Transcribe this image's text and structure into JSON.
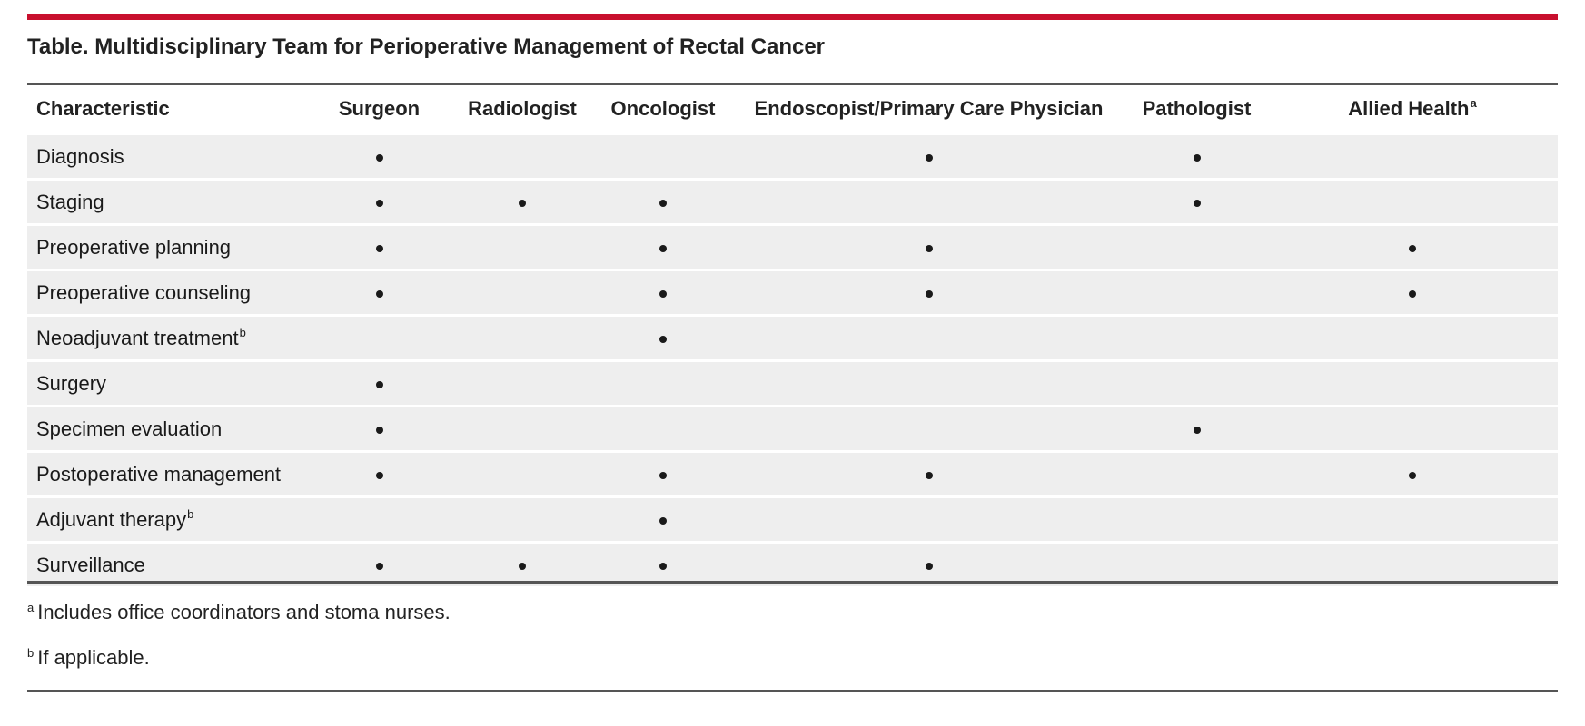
{
  "title": "Table. Multidisciplinary Team for Perioperative Management of Rectal Cancer",
  "columns": [
    {
      "label": "Characteristic",
      "sup": ""
    },
    {
      "label": "Surgeon",
      "sup": ""
    },
    {
      "label": "Radiologist",
      "sup": ""
    },
    {
      "label": "Oncologist",
      "sup": ""
    },
    {
      "label": "Endoscopist/Primary Care Physician",
      "sup": ""
    },
    {
      "label": "Pathologist",
      "sup": ""
    },
    {
      "label": "Allied Health",
      "sup": "a"
    }
  ],
  "rows": [
    {
      "label": "Diagnosis",
      "sup": "",
      "marks": [
        true,
        false,
        false,
        true,
        true,
        false
      ]
    },
    {
      "label": "Staging",
      "sup": "",
      "marks": [
        true,
        true,
        true,
        false,
        true,
        false
      ]
    },
    {
      "label": "Preoperative planning",
      "sup": "",
      "marks": [
        true,
        false,
        true,
        true,
        false,
        true
      ]
    },
    {
      "label": "Preoperative counseling",
      "sup": "",
      "marks": [
        true,
        false,
        true,
        true,
        false,
        true
      ]
    },
    {
      "label": "Neoadjuvant treatment",
      "sup": "b",
      "marks": [
        false,
        false,
        true,
        false,
        false,
        false
      ]
    },
    {
      "label": "Surgery",
      "sup": "",
      "marks": [
        true,
        false,
        false,
        false,
        false,
        false
      ]
    },
    {
      "label": "Specimen evaluation",
      "sup": "",
      "marks": [
        true,
        false,
        false,
        false,
        true,
        false
      ]
    },
    {
      "label": "Postoperative management",
      "sup": "",
      "marks": [
        true,
        false,
        true,
        true,
        false,
        true
      ]
    },
    {
      "label": "Adjuvant therapy",
      "sup": "b",
      "marks": [
        false,
        false,
        true,
        false,
        false,
        false
      ]
    },
    {
      "label": "Surveillance",
      "sup": "",
      "marks": [
        true,
        true,
        true,
        true,
        false,
        false
      ]
    }
  ],
  "footnotes": [
    {
      "marker": "a",
      "text": "Includes office coordinators and stoma nurses."
    },
    {
      "marker": "b",
      "text": "If applicable."
    }
  ],
  "colors": {
    "accent_rule": "#c8102e",
    "row_shade": "#eeeeee",
    "rule": "#555555"
  }
}
